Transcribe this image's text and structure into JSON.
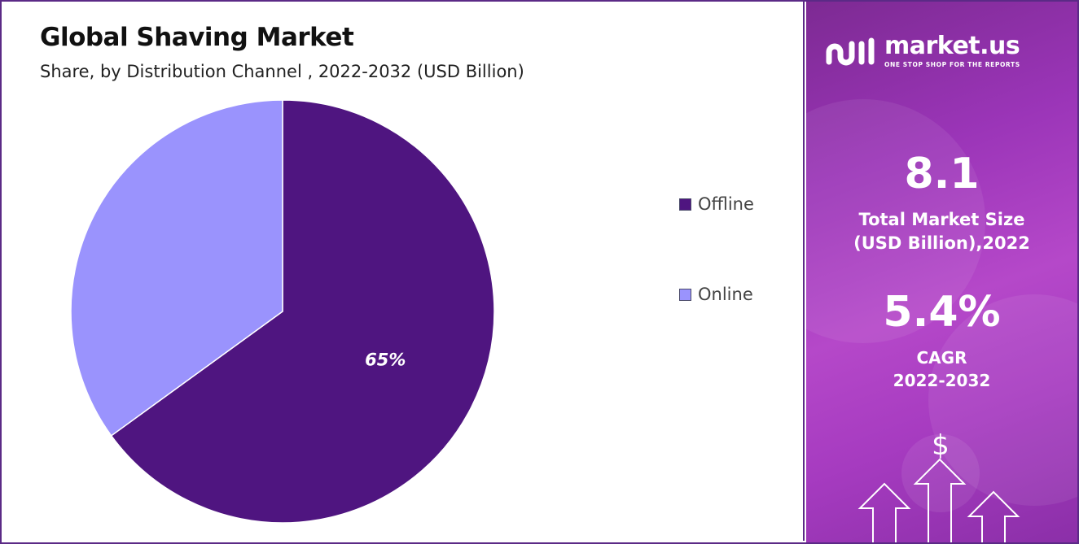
{
  "chart_data": {
    "type": "pie",
    "title": "Global Shaving Market",
    "subtitle": "Share, by Distribution Channel , 2022-2032 (USD Billion)",
    "slices": [
      {
        "label": "Offline",
        "value": 65,
        "color": "#4f1580",
        "data_label": "65%"
      },
      {
        "label": "Online",
        "value": 35,
        "color": "#9a93fd",
        "data_label": ""
      }
    ],
    "legend_position": "right"
  },
  "brand": {
    "name": "market.us",
    "tagline": "ONE STOP SHOP FOR THE REPORTS"
  },
  "stats": {
    "market_size": {
      "value": "8.1",
      "label_line1": "Total Market Size",
      "label_line2": "(USD Billion),2022"
    },
    "cagr": {
      "value": "5.4%",
      "label_line1": "CAGR",
      "label_line2": "2022-2032"
    }
  },
  "decoration": {
    "currency_symbol": "$"
  },
  "colors": {
    "panel_border": "#5b2a86",
    "offline": "#4f1580",
    "online": "#9a93fd"
  }
}
